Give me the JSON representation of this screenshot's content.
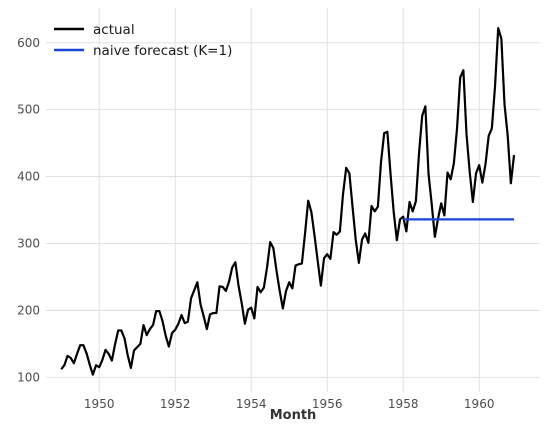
{
  "chart_data": {
    "type": "line",
    "xlabel": "Month",
    "ylabel": "",
    "xlim": [
      1948.6,
      1961.6
    ],
    "ylim": [
      78,
      652
    ],
    "x_ticks": [
      1950,
      1952,
      1954,
      1956,
      1958,
      1960
    ],
    "y_ticks": [
      100,
      200,
      300,
      400,
      500,
      600
    ],
    "grid": true,
    "legend_position": "top-left",
    "series": [
      {
        "name": "actual",
        "color": "#000000",
        "x_start": 1949.0,
        "x_step": 0.083333,
        "values": [
          112,
          118,
          132,
          129,
          121,
          135,
          148,
          148,
          136,
          119,
          104,
          118,
          115,
          126,
          141,
          135,
          125,
          149,
          170,
          170,
          158,
          133,
          114,
          140,
          145,
          150,
          178,
          163,
          172,
          178,
          199,
          199,
          184,
          162,
          146,
          166,
          171,
          180,
          193,
          181,
          183,
          218,
          230,
          242,
          209,
          191,
          172,
          194,
          196,
          196,
          236,
          235,
          229,
          243,
          264,
          272,
          237,
          211,
          180,
          201,
          204,
          188,
          235,
          227,
          234,
          264,
          302,
          293,
          259,
          229,
          203,
          229,
          242,
          233,
          267,
          269,
          270,
          315,
          364,
          347,
          312,
          274,
          237,
          278,
          284,
          277,
          317,
          313,
          318,
          374,
          413,
          405,
          355,
          306,
          271,
          306,
          315,
          301,
          356,
          348,
          355,
          422,
          465,
          467,
          404,
          347,
          305,
          336,
          340,
          318,
          362,
          348,
          363,
          435,
          491,
          505,
          404,
          359,
          310,
          337,
          360,
          342,
          406,
          396,
          420,
          472,
          548,
          559,
          463,
          407,
          362,
          405,
          417,
          391,
          419,
          461,
          472,
          535,
          622,
          606,
          508,
          461,
          390,
          432
        ]
      },
      {
        "name": "naive forecast (K=1)",
        "color": "#1a44d6",
        "x": [
          1958.0,
          1960.917
        ],
        "values": [
          336,
          336
        ]
      }
    ]
  }
}
